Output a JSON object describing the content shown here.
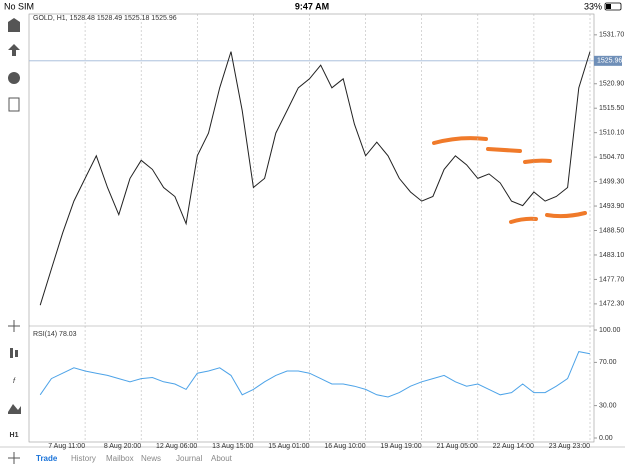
{
  "status_bar": {
    "carrier": "No SIM",
    "time": "9:47 AM",
    "battery": "33%"
  },
  "toolbar": {
    "timeframe": "H1"
  },
  "tabs": [
    "Trade",
    "History",
    "Mailbox",
    "News",
    "Journal",
    "About"
  ],
  "chart_data": [
    {
      "type": "line",
      "title": "GOLD, H1, 1528.48 1528.49 1525.18 1525.96",
      "color": "#222222",
      "categories": [
        null,
        null,
        null,
        null,
        "7 Aug 11:00",
        null,
        null,
        null,
        null,
        "8 Aug 20:00",
        null,
        null,
        null,
        null,
        "12 Aug 06:00",
        null,
        null,
        null,
        null,
        "13 Aug 15:00",
        null,
        null,
        null,
        null,
        "15 Aug 01:00",
        null,
        null,
        null,
        null,
        "16 Aug 10:00",
        null,
        null,
        null,
        null,
        "19 Aug 19:00",
        null,
        null,
        null,
        null,
        "21 Aug 05:00",
        null,
        null,
        null,
        null,
        "22 Aug 14:00",
        null,
        null,
        null,
        null,
        "23 Aug 23:00"
      ],
      "values": [
        1472,
        1480,
        1488,
        1495,
        1500,
        1505,
        1498,
        1492,
        1500,
        1504,
        1502,
        1498,
        1496,
        1490,
        1505,
        1510,
        1520,
        1528,
        1515,
        1498,
        1500,
        1510,
        1515,
        1520,
        1522,
        1525,
        1520,
        1522,
        1512,
        1505,
        1508,
        1505,
        1500,
        1497,
        1495,
        1496,
        1502,
        1505,
        1503,
        1500,
        1501,
        1499,
        1495,
        1494,
        1497,
        1495,
        1496,
        1498,
        1520,
        1528
      ],
      "ylim": [
        1468.3,
        1536.3
      ],
      "yticks": [
        {
          "value": 1531.7,
          "label": "1531.70"
        },
        {
          "value": 1520.9,
          "label": "1520.90"
        },
        {
          "value": 1515.5,
          "label": "1515.50"
        },
        {
          "value": 1510.1,
          "label": "1510.10"
        },
        {
          "value": 1504.7,
          "label": "1504.70"
        },
        {
          "value": 1499.3,
          "label": "1499.30"
        },
        {
          "value": 1493.9,
          "label": "1493.90"
        },
        {
          "value": 1488.5,
          "label": "1488.50"
        },
        {
          "value": 1483.1,
          "label": "1483.10"
        },
        {
          "value": 1477.7,
          "label": "1477.70"
        },
        {
          "value": 1472.3,
          "label": "1472.30"
        }
      ],
      "last_price": 1525.96
    },
    {
      "type": "line",
      "title": "RSI(14) 78.03",
      "color": "#4da3e8",
      "values": [
        40,
        55,
        60,
        65,
        62,
        60,
        58,
        55,
        52,
        55,
        56,
        52,
        50,
        45,
        60,
        62,
        65,
        58,
        40,
        45,
        52,
        58,
        62,
        62,
        60,
        55,
        50,
        50,
        48,
        45,
        40,
        38,
        42,
        48,
        52,
        55,
        58,
        52,
        48,
        50,
        45,
        40,
        42,
        50,
        42,
        42,
        48,
        55,
        80,
        78
      ],
      "ylim": [
        0,
        100
      ],
      "yticks": [
        {
          "value": 100,
          "label": "100.00"
        },
        {
          "value": 70,
          "label": "70.00"
        },
        {
          "value": 30,
          "label": "30.00"
        },
        {
          "value": 0,
          "label": "0.00"
        }
      ]
    }
  ]
}
